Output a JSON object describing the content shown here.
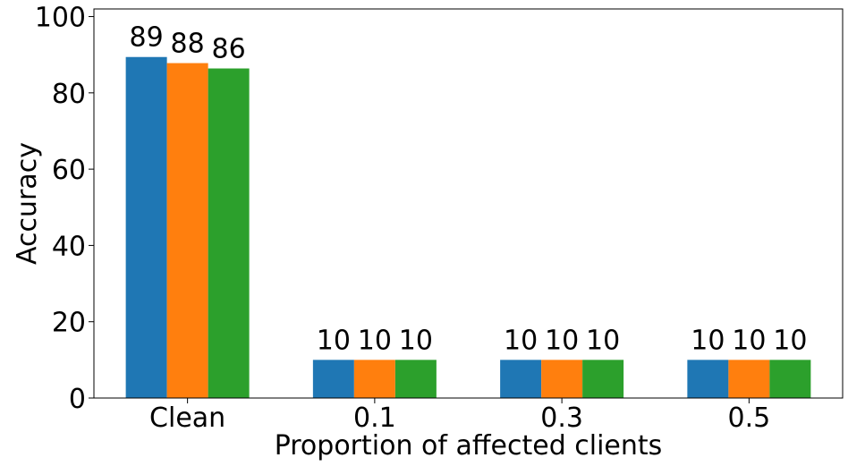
{
  "chart_data": {
    "type": "bar",
    "categories": [
      "Clean",
      "0.1",
      "0.3",
      "0.5"
    ],
    "series": [
      {
        "color": "#1f77b4",
        "values": [
          89.4,
          10,
          10,
          10
        ],
        "labels": [
          "89",
          "10",
          "10",
          "10"
        ]
      },
      {
        "color": "#ff7f0e",
        "values": [
          87.8,
          10,
          10,
          10
        ],
        "labels": [
          "88",
          "10",
          "10",
          "10"
        ]
      },
      {
        "color": "#2ca02c",
        "values": [
          86.4,
          10,
          10,
          10
        ],
        "labels": [
          "86",
          "10",
          "10",
          "10"
        ]
      }
    ],
    "xlabel": "Proportion of affected clients",
    "ylabel": "Accuracy",
    "ylim": [
      0,
      102
    ],
    "yticks": [
      0,
      20,
      40,
      60,
      80,
      100
    ],
    "grid": false,
    "legend": "none"
  }
}
